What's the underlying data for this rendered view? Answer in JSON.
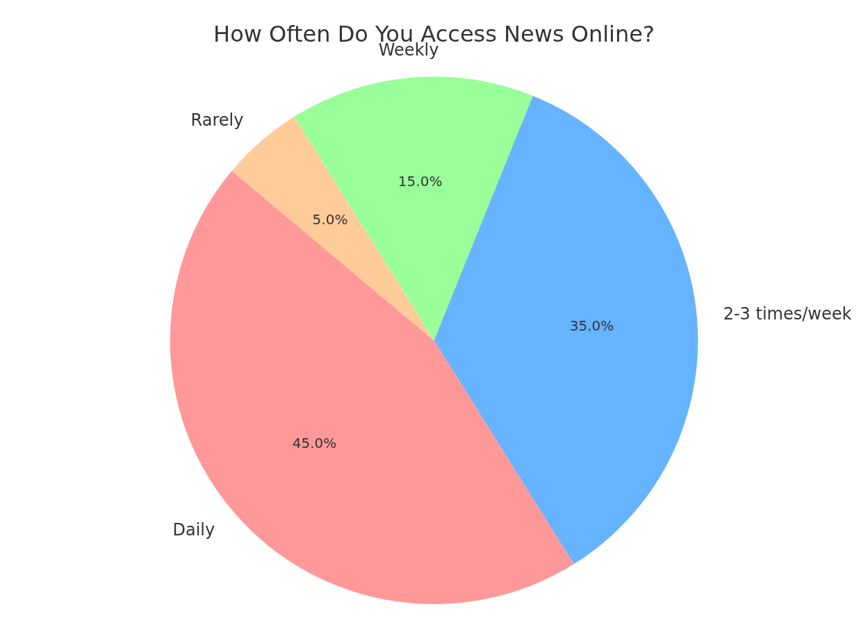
{
  "chart_data": {
    "type": "pie",
    "title": "How Often Do You Access News Online?",
    "categories": [
      "Weekly",
      "2-3 times/week",
      "Daily",
      "Rarely"
    ],
    "values": [
      15,
      35,
      45,
      5
    ],
    "colors": [
      "#99ff99",
      "#66b3ff",
      "#ff9999",
      "#ffcc99"
    ],
    "value_labels": [
      "15.0%",
      "35.0%",
      "45.0%",
      "5.0%"
    ],
    "legend": false
  }
}
